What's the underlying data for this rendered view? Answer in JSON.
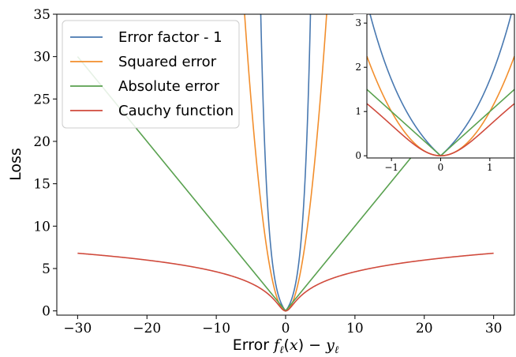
{
  "chart_data": [
    {
      "type": "line",
      "xlabel": "Error f_ℓ(x) − y_ℓ",
      "ylabel": "Loss",
      "xlim": [
        -33,
        33
      ],
      "ylim": [
        -0.5,
        35
      ],
      "xticks": [
        -30,
        -20,
        -10,
        0,
        10,
        20,
        30
      ],
      "xtick_labels": [
        "−30",
        "−20",
        "−10",
        "0",
        "10",
        "20",
        "30"
      ],
      "yticks": [
        0,
        5,
        10,
        15,
        20,
        25,
        30,
        35
      ],
      "ytick_labels": [
        "0",
        "5",
        "10",
        "15",
        "20",
        "25",
        "30",
        "35"
      ],
      "grid": false,
      "legend_position": "upper-left",
      "x_range": [
        -30,
        30
      ],
      "series": [
        {
          "name": "Error factor - 1",
          "color": "#4878b0",
          "function": "exp(|x|) - 1"
        },
        {
          "name": "Squared error",
          "color": "#f28e2c",
          "function": "x^2"
        },
        {
          "name": "Absolute error",
          "color": "#59a14f",
          "function": "|x|"
        },
        {
          "name": "Cauchy function",
          "color": "#d04a3c",
          "function": "ln(1 + x^2)"
        }
      ]
    },
    {
      "type": "line",
      "xlim": [
        -1.5,
        1.5
      ],
      "ylim": [
        -0.05,
        3.2
      ],
      "xticks": [
        -1,
        0,
        1
      ],
      "xtick_labels": [
        "−1",
        "0",
        "1"
      ],
      "yticks": [
        0,
        1,
        2,
        3
      ],
      "ytick_labels": [
        "0",
        "1",
        "2",
        "3"
      ],
      "grid": false,
      "legend_position": "none",
      "x_range": [
        -1.5,
        1.5
      ],
      "series": [
        {
          "color": "#4878b0",
          "function": "exp(|x|) - 1"
        },
        {
          "color": "#f28e2c",
          "function": "x^2"
        },
        {
          "color": "#59a14f",
          "function": "|x|"
        },
        {
          "color": "#d04a3c",
          "function": "ln(1 + x^2)"
        }
      ]
    }
  ]
}
